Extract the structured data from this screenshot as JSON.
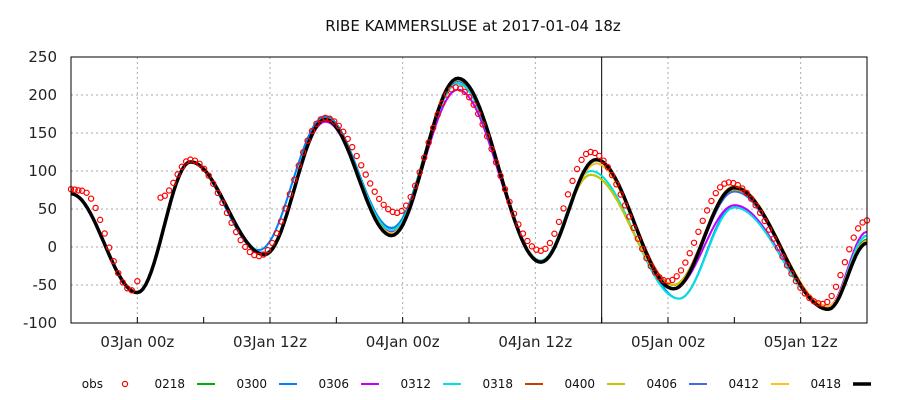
{
  "chart_data": {
    "type": "line",
    "title": "RIBE KAMMERSLUSE at 2017-01-04 18z",
    "xlabel": "",
    "ylabel": "",
    "x_unit": "hours since 02Jan 18z",
    "xlim": [
      0,
      72
    ],
    "ylim": [
      -100,
      250
    ],
    "yticks": [
      250,
      200,
      150,
      100,
      50,
      0,
      -50,
      -100
    ],
    "xticks": [
      {
        "h": 6,
        "label": "03Jan 00z"
      },
      {
        "h": 18,
        "label": "03Jan 12z"
      },
      {
        "h": 30,
        "label": "04Jan 00z"
      },
      {
        "h": 42,
        "label": "04Jan 12z"
      },
      {
        "h": 54,
        "label": "05Jan 00z"
      },
      {
        "h": 66,
        "label": "05Jan 12z"
      }
    ],
    "analysis_time_h": 48,
    "grid": true,
    "legend_placement": "bottom",
    "obs": {
      "name": "obs",
      "color": "#ff0000",
      "segments": [
        [
          [
            0,
            76
          ],
          [
            1,
            74
          ],
          [
            5.5,
            -57
          ]
        ],
        [
          [
            6,
            -45
          ]
        ],
        [
          [
            8.1,
            65
          ],
          [
            10.8,
            115
          ],
          [
            17,
            -12
          ],
          [
            23,
            170
          ],
          [
            29.5,
            45
          ],
          [
            34.8,
            210
          ],
          [
            42.5,
            -5
          ],
          [
            47,
            125
          ],
          [
            54,
            -45
          ],
          [
            59.5,
            85
          ],
          [
            68,
            -75
          ],
          [
            72,
            35
          ]
        ]
      ]
    },
    "series": [
      {
        "name": "0218",
        "color": "#00b000",
        "points": [
          [
            0,
            70
          ],
          [
            6,
            -60
          ],
          [
            10.8,
            112
          ],
          [
            17.5,
            -8
          ],
          [
            23,
            172
          ],
          [
            29,
            25
          ],
          [
            35,
            222
          ],
          [
            42.5,
            -18
          ],
          [
            47,
            95
          ],
          [
            54.5,
            -50
          ],
          [
            60,
            75
          ],
          [
            68.5,
            -80
          ],
          [
            72,
            10
          ]
        ]
      },
      {
        "name": "0300",
        "color": "#0080ff",
        "points": [
          [
            0,
            70
          ],
          [
            6,
            -60
          ],
          [
            10.8,
            112
          ],
          [
            17,
            -4
          ],
          [
            23,
            172
          ],
          [
            29,
            25
          ],
          [
            35,
            218
          ],
          [
            42.5,
            -18
          ],
          [
            47.5,
            110
          ],
          [
            55,
            -68
          ],
          [
            60,
            55
          ],
          [
            68.5,
            -80
          ],
          [
            72,
            15
          ]
        ]
      },
      {
        "name": "0306",
        "color": "#c000ff",
        "points": [
          [
            0,
            70
          ],
          [
            6,
            -60
          ],
          [
            10.8,
            112
          ],
          [
            17.5,
            -8
          ],
          [
            23,
            165
          ],
          [
            29,
            20
          ],
          [
            35,
            207
          ],
          [
            42.5,
            -18
          ],
          [
            47.5,
            115
          ],
          [
            54.5,
            -55
          ],
          [
            60,
            55
          ],
          [
            68.5,
            -78
          ],
          [
            72,
            20
          ]
        ]
      },
      {
        "name": "0312",
        "color": "#00e0e0",
        "points": [
          [
            0,
            70
          ],
          [
            6,
            -60
          ],
          [
            10.8,
            112
          ],
          [
            17.5,
            -8
          ],
          [
            23,
            170
          ],
          [
            29,
            22
          ],
          [
            35,
            215
          ],
          [
            42.5,
            -18
          ],
          [
            47,
            100
          ],
          [
            55,
            -68
          ],
          [
            60,
            52
          ],
          [
            68.5,
            -80
          ],
          [
            72,
            15
          ]
        ]
      },
      {
        "name": "0318",
        "color": "#c04000",
        "points": [
          [
            0,
            70
          ],
          [
            6,
            -60
          ],
          [
            10.8,
            112
          ],
          [
            17.5,
            -10
          ],
          [
            23,
            168
          ],
          [
            29,
            18
          ],
          [
            35,
            220
          ],
          [
            42.5,
            -20
          ],
          [
            47.5,
            115
          ],
          [
            54.5,
            -50
          ],
          [
            60,
            80
          ],
          [
            68.5,
            -80
          ],
          [
            72,
            8
          ]
        ]
      },
      {
        "name": "0400",
        "color": "#c8c800",
        "points": [
          [
            0,
            70
          ],
          [
            6,
            -60
          ],
          [
            10.8,
            112
          ],
          [
            17.5,
            -10
          ],
          [
            23,
            168
          ],
          [
            29,
            18
          ],
          [
            35,
            220
          ],
          [
            42.5,
            -20
          ],
          [
            47,
            95
          ],
          [
            54.5,
            -50
          ],
          [
            60,
            75
          ],
          [
            68.5,
            -80
          ],
          [
            72,
            8
          ]
        ]
      },
      {
        "name": "0406",
        "color": "#4169e1",
        "points": [
          [
            0,
            70
          ],
          [
            6,
            -60
          ],
          [
            10.8,
            112
          ],
          [
            17.5,
            -10
          ],
          [
            23,
            168
          ],
          [
            29,
            18
          ],
          [
            35,
            220
          ],
          [
            42.5,
            -20
          ],
          [
            47.5,
            115
          ],
          [
            54.5,
            -55
          ],
          [
            60,
            73
          ],
          [
            68.5,
            -80
          ],
          [
            72,
            8
          ]
        ]
      },
      {
        "name": "0412",
        "color": "#ffc020",
        "points": [
          [
            0,
            70
          ],
          [
            6,
            -60
          ],
          [
            10.8,
            112
          ],
          [
            17.5,
            -10
          ],
          [
            23,
            168
          ],
          [
            29,
            18
          ],
          [
            35,
            220
          ],
          [
            42.5,
            -20
          ],
          [
            47.5,
            110
          ],
          [
            54.5,
            -55
          ],
          [
            60,
            80
          ],
          [
            68.5,
            -78
          ],
          [
            72,
            8
          ]
        ]
      },
      {
        "name": "0418",
        "color": "#000000",
        "points": [
          [
            0,
            70
          ],
          [
            6,
            -60
          ],
          [
            10.8,
            112
          ],
          [
            17.5,
            -10
          ],
          [
            23,
            168
          ],
          [
            29,
            15
          ],
          [
            35,
            222
          ],
          [
            42.5,
            -20
          ],
          [
            47.5,
            115
          ],
          [
            54.5,
            -55
          ],
          [
            60,
            78
          ],
          [
            68.5,
            -82
          ],
          [
            72,
            5
          ]
        ]
      }
    ]
  }
}
